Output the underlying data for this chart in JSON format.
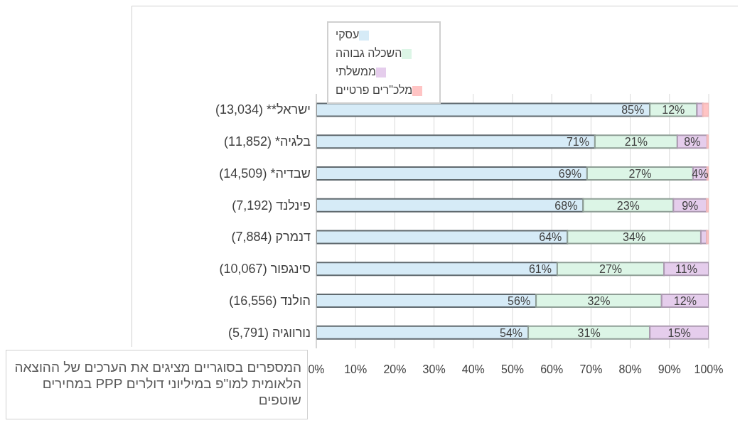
{
  "chart_data": {
    "type": "bar",
    "orientation": "horizontal",
    "stacked": true,
    "categories": [
      "ישראל** (13,034)",
      "בלגיה* (11,852)",
      "שבדיה* (14,509)",
      "פינלנד (7,192)",
      "דנמרק (7,884)",
      "סינגפור (10,067)",
      "הולנד (16,556)",
      "נורווגיה (5,791)"
    ],
    "series": [
      {
        "name": "עסקי",
        "color": "#d6ebf7",
        "values": [
          85,
          71,
          69,
          68,
          64,
          61.4,
          56,
          54
        ],
        "value_labels": [
          "85%",
          "71%",
          "69%",
          "68%",
          "64%",
          "61%",
          "56%",
          "54%"
        ]
      },
      {
        "name": "השכלה גבוהה",
        "color": "#dcf5e6",
        "values": [
          12,
          21,
          27,
          23,
          34,
          27.2,
          32,
          31
        ],
        "value_labels": [
          "12%",
          "21%",
          "27%",
          "23%",
          "34%",
          "27%",
          "32%",
          "31%"
        ]
      },
      {
        "name": "ממשלתי",
        "color": "#e5cdec",
        "values": [
          1.5,
          7.6,
          3.6,
          8.5,
          1.5,
          11.4,
          12,
          15
        ],
        "value_labels": [
          null,
          "8%",
          "4%",
          "9%",
          null,
          "11%",
          "12%",
          "15%"
        ]
      },
      {
        "name": "מלכ\"רים פרטיים",
        "color": "#ffc4c4",
        "values": [
          1.5,
          0.4,
          0.4,
          0.5,
          0.5,
          null,
          null,
          null
        ],
        "value_labels": [
          null,
          null,
          null,
          null,
          null,
          null,
          null,
          null
        ]
      }
    ],
    "xlim": [
      0,
      100
    ],
    "xticks": [
      {
        "value": 0,
        "label": "0%"
      },
      {
        "value": 10,
        "label": "10%"
      },
      {
        "value": 20,
        "label": "20%"
      },
      {
        "value": 30,
        "label": "30%"
      },
      {
        "value": 40,
        "label": "40%"
      },
      {
        "value": 50,
        "label": "50%"
      },
      {
        "value": 60,
        "label": "60%"
      },
      {
        "value": 70,
        "label": "70%"
      },
      {
        "value": 80,
        "label": "80%"
      },
      {
        "value": 90,
        "label": "90%"
      },
      {
        "value": 100,
        "label": "100%"
      }
    ],
    "grid": "x",
    "legend": "top left",
    "annotations": [
      "המספרים בסוגריים מציגים את הערכים של ההוצאה הלאומית למו\"פ במיליוני דולרים PPP במחירים שוטפים"
    ]
  }
}
